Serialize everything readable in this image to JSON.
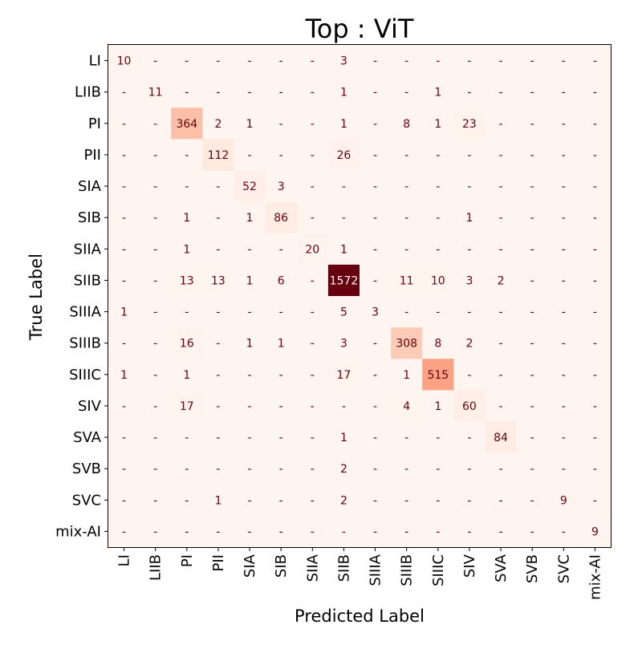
{
  "chart_data": {
    "type": "heatmap",
    "title": "Top : ViT",
    "xlabel": "Predicted Label",
    "ylabel": "True Label",
    "labels": [
      "LI",
      "LIIB",
      "PI",
      "PII",
      "SIA",
      "SIB",
      "SIIA",
      "SIIB",
      "SIIIA",
      "SIIIB",
      "SIIIC",
      "SIV",
      "SVA",
      "SVB",
      "SVC",
      "mix-AI"
    ],
    "empty_cell_text": "-",
    "colormap": "Reds",
    "vmax": 1572,
    "matrix": [
      [
        10,
        0,
        0,
        0,
        0,
        0,
        0,
        3,
        0,
        0,
        0,
        0,
        0,
        0,
        0,
        0
      ],
      [
        0,
        11,
        0,
        0,
        0,
        0,
        0,
        1,
        0,
        0,
        1,
        0,
        0,
        0,
        0,
        0
      ],
      [
        0,
        0,
        364,
        2,
        1,
        0,
        0,
        1,
        0,
        8,
        1,
        23,
        0,
        0,
        0,
        0
      ],
      [
        0,
        0,
        0,
        112,
        0,
        0,
        0,
        26,
        0,
        0,
        0,
        0,
        0,
        0,
        0,
        0
      ],
      [
        0,
        0,
        0,
        0,
        52,
        3,
        0,
        0,
        0,
        0,
        0,
        0,
        0,
        0,
        0,
        0
      ],
      [
        0,
        0,
        1,
        0,
        1,
        86,
        0,
        0,
        0,
        0,
        0,
        1,
        0,
        0,
        0,
        0
      ],
      [
        0,
        0,
        1,
        0,
        0,
        0,
        20,
        1,
        0,
        0,
        0,
        0,
        0,
        0,
        0,
        0
      ],
      [
        0,
        0,
        13,
        13,
        1,
        6,
        0,
        1572,
        0,
        11,
        10,
        3,
        2,
        0,
        0,
        0
      ],
      [
        1,
        0,
        0,
        0,
        0,
        0,
        0,
        5,
        3,
        0,
        0,
        0,
        0,
        0,
        0,
        0
      ],
      [
        0,
        0,
        16,
        0,
        1,
        1,
        0,
        3,
        0,
        308,
        8,
        2,
        0,
        0,
        0,
        0
      ],
      [
        1,
        0,
        1,
        0,
        0,
        0,
        0,
        17,
        0,
        1,
        515,
        0,
        0,
        0,
        0,
        0
      ],
      [
        0,
        0,
        17,
        0,
        0,
        0,
        0,
        0,
        0,
        4,
        1,
        60,
        0,
        0,
        0,
        0
      ],
      [
        0,
        0,
        0,
        0,
        0,
        0,
        0,
        1,
        0,
        0,
        0,
        0,
        84,
        0,
        0,
        0
      ],
      [
        0,
        0,
        0,
        0,
        0,
        0,
        0,
        2,
        0,
        0,
        0,
        0,
        0,
        0,
        0,
        0
      ],
      [
        0,
        0,
        0,
        1,
        0,
        0,
        0,
        2,
        0,
        0,
        0,
        0,
        0,
        0,
        9,
        0
      ],
      [
        0,
        0,
        0,
        0,
        0,
        0,
        0,
        0,
        0,
        0,
        0,
        0,
        0,
        0,
        0,
        9
      ]
    ]
  }
}
